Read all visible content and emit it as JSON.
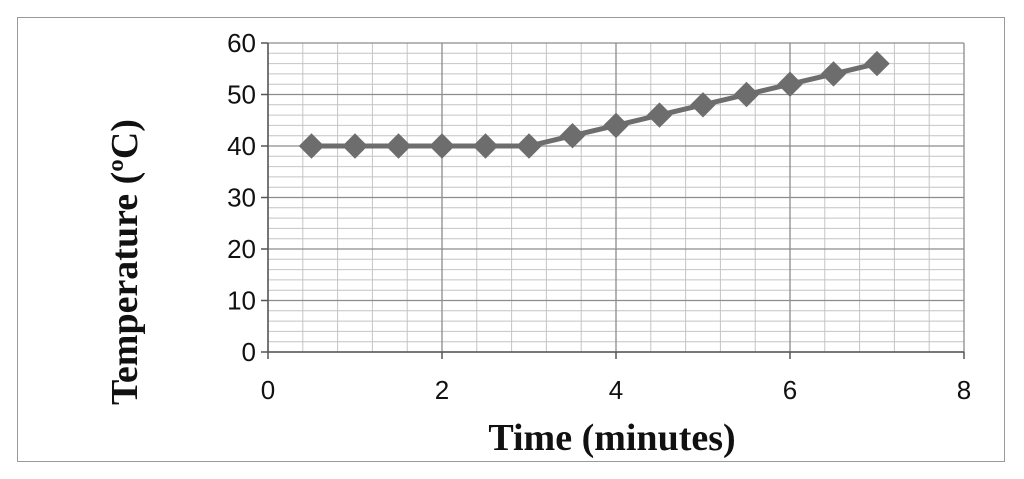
{
  "chart_data": {
    "type": "scatter",
    "title": "",
    "xlabel": "Time (minutes)",
    "ylabel": "Temperature (ºC)",
    "xlim": [
      0,
      8
    ],
    "ylim": [
      0,
      60
    ],
    "x_ticks": [
      0,
      2,
      4,
      6,
      8
    ],
    "y_ticks": [
      0,
      10,
      20,
      30,
      40,
      50,
      60
    ],
    "x_tick_labels": [
      "0",
      "2",
      "4",
      "6",
      "8"
    ],
    "y_tick_labels": [
      "0",
      "10",
      "20",
      "30",
      "40",
      "50",
      "60"
    ],
    "grid": true,
    "legend": "none",
    "marker": "diamond",
    "connected": true,
    "series": [
      {
        "color": "#6d6d6d",
        "x": [
          0.5,
          1,
          1.5,
          2,
          2.5,
          3,
          3.5,
          4,
          4.5,
          5,
          5.5,
          6,
          6.5,
          7
        ],
        "y": [
          40,
          40,
          40,
          40,
          40,
          40,
          42,
          44,
          46,
          48,
          50,
          52,
          54,
          56
        ]
      }
    ],
    "colors": {
      "frame": "#9a9a9a",
      "major_grid": "#8c8c8c",
      "minor_grid": "#c4c4c4",
      "series": "#6d6d6d"
    }
  }
}
